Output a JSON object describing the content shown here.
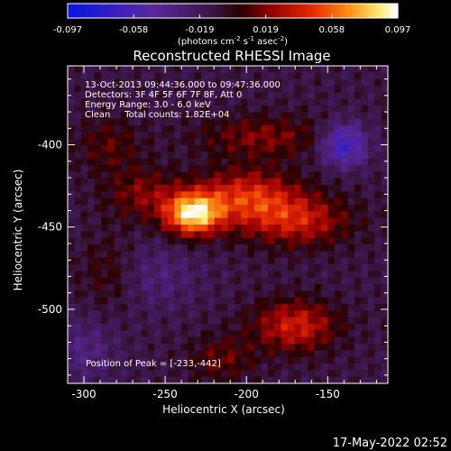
{
  "chart_data": {
    "type": "heatmap",
    "title": "Reconstructed RHESSI Image",
    "xlabel": "Heliocentric X (arcsec)",
    "ylabel": "Heliocentric Y (arcsec)",
    "xlim": [
      -310,
      -113
    ],
    "ylim": [
      -545,
      -352
    ],
    "x_ticks": [
      -300,
      -250,
      -200,
      -150
    ],
    "y_ticks": [
      -400,
      -450,
      -500
    ],
    "colorbar": {
      "ticks": [
        "-0.097",
        "-0.058",
        "-0.019",
        "0.019",
        "0.058",
        "0.097"
      ],
      "range": [
        -0.097,
        0.097
      ],
      "label_main": "(photons cm",
      "label_exp1": "-2",
      "label_mid1": " s",
      "label_exp2": "-1",
      "label_mid2": " asec",
      "label_exp3": "-2",
      "label_end": ")"
    },
    "info_lines": [
      "13-Oct-2013 09:44:36.000 to 09:47:36.000",
      "Detectors: 3F 4F 5F 6F 7F 8F, Att 0",
      "Energy Range: 3.0 - 6.0 keV",
      "Clean     Total counts: 1.82E+04"
    ],
    "peak_label": "Position of Peak = [-233,-442]",
    "peak": [
      -233,
      -442
    ],
    "sources": [
      {
        "x": -233,
        "y": -442,
        "amp": 0.097,
        "sx": 12,
        "sy": 9
      },
      {
        "x": -200,
        "y": -432,
        "amp": 0.055,
        "sx": 22,
        "sy": 12
      },
      {
        "x": -168,
        "y": -446,
        "amp": 0.045,
        "sx": 22,
        "sy": 11
      },
      {
        "x": -264,
        "y": -430,
        "amp": 0.03,
        "sx": 16,
        "sy": 11
      },
      {
        "x": -170,
        "y": -510,
        "amp": 0.05,
        "sx": 18,
        "sy": 11
      },
      {
        "x": -190,
        "y": -395,
        "amp": 0.03,
        "sx": 28,
        "sy": 9
      },
      {
        "x": -285,
        "y": -400,
        "amp": 0.022,
        "sx": 14,
        "sy": 12
      },
      {
        "x": -285,
        "y": -478,
        "amp": 0.018,
        "sx": 12,
        "sy": 16
      },
      {
        "x": -140,
        "y": -400,
        "amp": -0.06,
        "sx": 10,
        "sy": 9
      },
      {
        "x": -215,
        "y": -530,
        "amp": 0.025,
        "sx": 14,
        "sy": 10
      },
      {
        "x": -255,
        "y": -480,
        "amp": -0.018,
        "sx": 18,
        "sy": 14
      },
      {
        "x": -300,
        "y": -525,
        "amp": -0.022,
        "sx": 14,
        "sy": 14
      }
    ]
  },
  "timestamp": "17-May-2022 02:52"
}
